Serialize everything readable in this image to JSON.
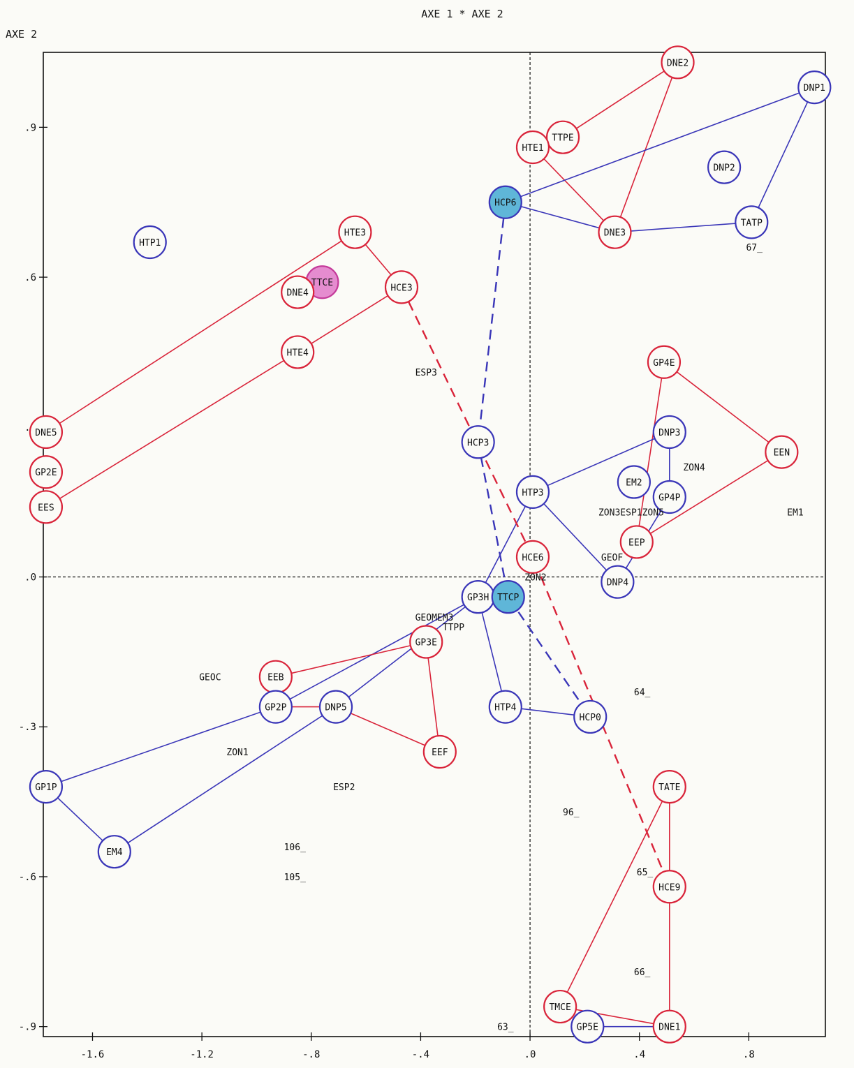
{
  "chart_data": {
    "type": "scatter",
    "title": "AXE 1  *  AXE 2",
    "xlabel": "",
    "ylabel": "AXE 2",
    "xlim": [
      -1.78,
      1.08
    ],
    "ylim": [
      -0.92,
      1.05
    ],
    "xticks": [
      {
        "v": -1.6,
        "t": "-1.6"
      },
      {
        "v": -1.2,
        "t": "-1.2"
      },
      {
        "v": -0.8,
        "t": "-.8"
      },
      {
        "v": -0.4,
        "t": "-.4"
      },
      {
        "v": 0.0,
        "t": ".0"
      },
      {
        "v": 0.4,
        "t": ".4"
      },
      {
        "v": 0.8,
        "t": ".8"
      }
    ],
    "yticks": [
      {
        "v": 0.9,
        "t": ".9"
      },
      {
        "v": 0.6,
        "t": ".6"
      },
      {
        "v": 0.3,
        "t": ".3"
      },
      {
        "v": 0.0,
        "t": ".0"
      },
      {
        "v": -0.3,
        "t": "-.3"
      },
      {
        "v": -0.6,
        "t": "-.6"
      },
      {
        "v": -0.9,
        "t": "-.9"
      }
    ],
    "points": [
      {
        "label": "DNE2",
        "x": 0.54,
        "y": 1.03,
        "mark": "red"
      },
      {
        "label": "DNP1",
        "x": 1.04,
        "y": 0.98,
        "mark": "blue"
      },
      {
        "label": "DNP2",
        "x": 0.71,
        "y": 0.82,
        "mark": "blue"
      },
      {
        "label": "TTPE",
        "x": 0.12,
        "y": 0.88,
        "mark": "red"
      },
      {
        "label": "HTE1",
        "x": 0.01,
        "y": 0.86,
        "mark": "red"
      },
      {
        "label": "HCP6",
        "x": -0.09,
        "y": 0.75,
        "mark": "filled-blue"
      },
      {
        "label": "TATP",
        "x": 0.81,
        "y": 0.71,
        "mark": "blue"
      },
      {
        "label": "DNE3",
        "x": 0.31,
        "y": 0.69,
        "mark": "red"
      },
      {
        "label": "HTE3",
        "x": -0.64,
        "y": 0.69,
        "mark": "red"
      },
      {
        "label": "HTP1",
        "x": -1.39,
        "y": 0.67,
        "mark": "blue"
      },
      {
        "label": "TTCE",
        "x": -0.76,
        "y": 0.59,
        "mark": "filled-pink"
      },
      {
        "label": "DNE4",
        "x": -0.85,
        "y": 0.57,
        "mark": "red"
      },
      {
        "label": "HCE3",
        "x": -0.47,
        "y": 0.58,
        "mark": "red"
      },
      {
        "label": "HTE4",
        "x": -0.85,
        "y": 0.45,
        "mark": "red"
      },
      {
        "label": "GP4E",
        "x": 0.49,
        "y": 0.43,
        "mark": "red"
      },
      {
        "label": "DNP3",
        "x": 0.51,
        "y": 0.29,
        "mark": "blue"
      },
      {
        "label": "EEN",
        "x": 0.92,
        "y": 0.25,
        "mark": "red"
      },
      {
        "label": "DNE5",
        "x": -1.77,
        "y": 0.29,
        "mark": "red"
      },
      {
        "label": "GP2E",
        "x": -1.77,
        "y": 0.21,
        "mark": "red"
      },
      {
        "label": "EES",
        "x": -1.77,
        "y": 0.14,
        "mark": "red"
      },
      {
        "label": "HCP3",
        "x": -0.19,
        "y": 0.27,
        "mark": "blue"
      },
      {
        "label": "HTP3",
        "x": 0.01,
        "y": 0.17,
        "mark": "blue"
      },
      {
        "label": "EM2",
        "x": 0.38,
        "y": 0.19,
        "mark": "blue"
      },
      {
        "label": "GP4P",
        "x": 0.51,
        "y": 0.16,
        "mark": "blue"
      },
      {
        "label": "EEP",
        "x": 0.39,
        "y": 0.07,
        "mark": "red"
      },
      {
        "label": "HCE6",
        "x": 0.01,
        "y": 0.04,
        "mark": "red"
      },
      {
        "label": "DNP4",
        "x": 0.32,
        "y": -0.01,
        "mark": "blue"
      },
      {
        "label": "GP3H",
        "x": -0.19,
        "y": -0.04,
        "mark": "blue"
      },
      {
        "label": "TTCP",
        "x": -0.08,
        "y": -0.04,
        "mark": "filled-blue"
      },
      {
        "label": "GP3E",
        "x": -0.38,
        "y": -0.13,
        "mark": "red"
      },
      {
        "label": "EEB",
        "x": -0.93,
        "y": -0.2,
        "mark": "red"
      },
      {
        "label": "GP2P",
        "x": -0.93,
        "y": -0.26,
        "mark": "blue"
      },
      {
        "label": "DNP5",
        "x": -0.71,
        "y": -0.26,
        "mark": "blue"
      },
      {
        "label": "HTP4",
        "x": -0.09,
        "y": -0.26,
        "mark": "blue"
      },
      {
        "label": "HCP0",
        "x": 0.22,
        "y": -0.28,
        "mark": "blue"
      },
      {
        "label": "EEF",
        "x": -0.33,
        "y": -0.35,
        "mark": "red"
      },
      {
        "label": "GP1P",
        "x": -1.77,
        "y": -0.42,
        "mark": "blue"
      },
      {
        "label": "TATE",
        "x": 0.51,
        "y": -0.42,
        "mark": "red"
      },
      {
        "label": "EM4",
        "x": -1.52,
        "y": -0.55,
        "mark": "blue"
      },
      {
        "label": "HCE9",
        "x": 0.51,
        "y": -0.62,
        "mark": "red"
      },
      {
        "label": "TMCE",
        "x": 0.11,
        "y": -0.86,
        "mark": "red"
      },
      {
        "label": "GP5E",
        "x": 0.21,
        "y": -0.9,
        "mark": "blue"
      },
      {
        "label": "DNE1",
        "x": 0.51,
        "y": -0.9,
        "mark": "red"
      },
      {
        "label": "ZON4",
        "x": 0.6,
        "y": 0.22,
        "mark": "none"
      },
      {
        "label": "ZON3ESP1ZON5",
        "x": 0.37,
        "y": 0.13,
        "mark": "none"
      },
      {
        "label": "EM1",
        "x": 0.97,
        "y": 0.13,
        "mark": "none"
      },
      {
        "label": "GEOF",
        "x": 0.3,
        "y": 0.04,
        "mark": "none"
      },
      {
        "label": "ZON2",
        "x": 0.02,
        "y": 0.0,
        "mark": "none"
      },
      {
        "label": "GEOMEM3",
        "x": -0.35,
        "y": -0.08,
        "mark": "none"
      },
      {
        "label": "TTPP",
        "x": -0.28,
        "y": -0.1,
        "mark": "none"
      },
      {
        "label": "ESP3",
        "x": -0.38,
        "y": 0.41,
        "mark": "none"
      },
      {
        "label": "GEOC",
        "x": -1.17,
        "y": -0.2,
        "mark": "none"
      },
      {
        "label": "ZON1",
        "x": -1.07,
        "y": -0.35,
        "mark": "none"
      },
      {
        "label": "ESP2",
        "x": -0.68,
        "y": -0.42,
        "mark": "none"
      },
      {
        "label": "67_",
        "x": 0.82,
        "y": 0.66,
        "mark": "none"
      },
      {
        "label": "64_",
        "x": 0.41,
        "y": -0.23,
        "mark": "none"
      },
      {
        "label": "96_",
        "x": 0.15,
        "y": -0.47,
        "mark": "none"
      },
      {
        "label": "106_",
        "x": -0.86,
        "y": -0.54,
        "mark": "none"
      },
      {
        "label": "105_",
        "x": -0.86,
        "y": -0.6,
        "mark": "none"
      },
      {
        "label": "65_",
        "x": 0.42,
        "y": -0.59,
        "mark": "none"
      },
      {
        "label": "66_",
        "x": 0.41,
        "y": -0.79,
        "mark": "none"
      },
      {
        "label": "63_",
        "x": -0.09,
        "y": -0.9,
        "mark": "none"
      }
    ],
    "groups": [
      {
        "color": "#d9243a",
        "dashed": false,
        "members": [
          "DNE2",
          "TTPE",
          "HTE1",
          "DNE3",
          "DNE2"
        ]
      },
      {
        "color": "#3a36b8",
        "dashed": false,
        "members": [
          "DNP1",
          "HCP6",
          "DNE3",
          "TATP",
          "DNP1"
        ]
      },
      {
        "color": "#d9243a",
        "dashed": false,
        "members": [
          "DNE5",
          "HTE3",
          "HCE3",
          "HTE4",
          "EES"
        ]
      },
      {
        "color": "#d9243a",
        "dashed": false,
        "members": [
          "GP4E",
          "EEN",
          "EEP",
          "GP4E"
        ]
      },
      {
        "color": "#3a36b8",
        "dashed": false,
        "members": [
          "DNP3",
          "GP4P",
          "DNP4",
          "HTP3",
          "DNP3"
        ]
      },
      {
        "color": "#3a36b8",
        "dashed": false,
        "members": [
          "HTP3",
          "GP3H",
          "HTP4",
          "HCP0"
        ]
      },
      {
        "color": "#3a36b8",
        "dashed": false,
        "members": [
          "GP1P",
          "GP2P",
          "GP3H",
          "GP3H",
          "DNP5",
          "EM4",
          "GP1P"
        ]
      },
      {
        "color": "#d9243a",
        "dashed": false,
        "members": [
          "EEB",
          "GP3E",
          "EEF",
          "DNP5",
          "GP2P",
          "EEB"
        ]
      },
      {
        "color": "#d9243a",
        "dashed": false,
        "members": [
          "TATE",
          "DNE1",
          "TMCE",
          "TATE"
        ]
      },
      {
        "color": "#3a36b8",
        "dashed": false,
        "members": [
          "GP5E",
          "DNE1"
        ]
      },
      {
        "color": "#3a36b8",
        "dashed": true,
        "members": [
          "HCP6",
          "HCP3",
          "TTCP",
          "HCP0"
        ]
      },
      {
        "color": "#d9243a",
        "dashed": true,
        "members": [
          "HCE3",
          "HCE6",
          "HCE9"
        ]
      }
    ]
  }
}
